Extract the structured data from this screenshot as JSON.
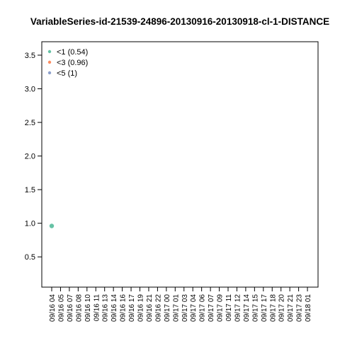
{
  "chart_data": {
    "type": "scatter",
    "title": "VariableSeries-id-21539-24896-20130916-20130918-cl-1-DISTANCE",
    "xlabel": "",
    "ylabel": "",
    "ylim": [
      0.05,
      3.7
    ],
    "y_ticks": [
      "0.5",
      "1.0",
      "1.5",
      "2.0",
      "2.5",
      "3.0",
      "3.5"
    ],
    "x_ticks": [
      "09/16 04",
      "09/16 05",
      "09/16 07",
      "09/16 08",
      "09/16 10",
      "09/16 11",
      "09/16 13",
      "09/16 14",
      "09/16 16",
      "09/16 17",
      "09/16 19",
      "09/16 21",
      "09/16 22",
      "09/17 00",
      "09/17 01",
      "09/17 03",
      "09/17 04",
      "09/17 06",
      "09/17 07",
      "09/17 09",
      "09/17 11",
      "09/17 12",
      "09/17 14",
      "09/17 15",
      "09/17 17",
      "09/17 18",
      "09/17 20",
      "09/17 21",
      "09/17 23",
      "09/18 01"
    ],
    "legend": [
      {
        "label": "<1 (0.54)",
        "color": "#66c2a5"
      },
      {
        "label": "<3 (0.96)",
        "color": "#fc8d62"
      },
      {
        "label": "<5 (1)",
        "color": "#8da0cb"
      }
    ],
    "legend_position": "top-left",
    "grid": false,
    "series": [
      {
        "color": "#66c2a5",
        "points": [
          {
            "x": "09/16 04",
            "y": 0.96
          }
        ]
      }
    ]
  }
}
